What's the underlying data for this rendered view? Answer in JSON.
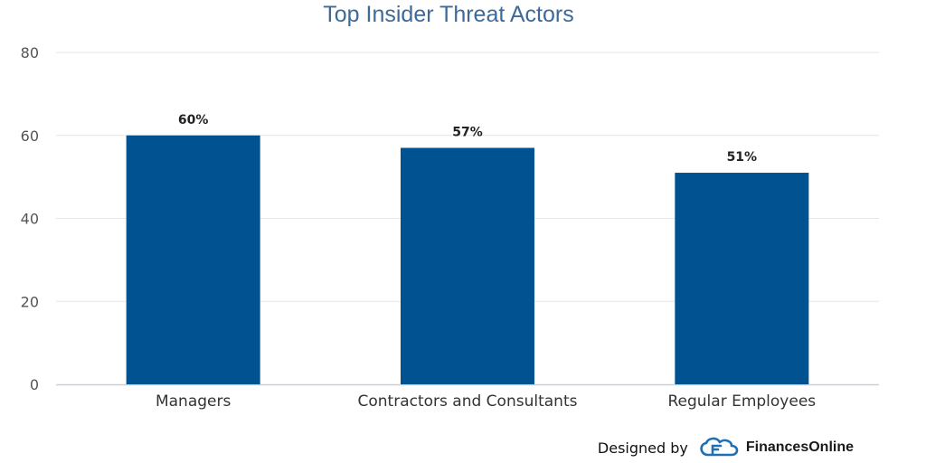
{
  "chart_data": {
    "type": "bar",
    "title": "Top Insider Threat Actors",
    "categories": [
      "Managers",
      "Contractors and Consultants",
      "Regular Employees"
    ],
    "values": [
      60,
      57,
      51
    ],
    "data_labels": [
      "60%",
      "57%",
      "51%"
    ],
    "yticks": [
      "0",
      "20",
      "40",
      "60",
      "80"
    ],
    "ylim": [
      0,
      80
    ],
    "grid": true,
    "bar_color": "#005290",
    "grid_color": "#e6e6e6",
    "axis_color": "#c8d0e0"
  },
  "credit": {
    "prefix": "Designed by",
    "brand": "FinancesOnline",
    "brand_icon": "financesonline-logo-icon"
  }
}
